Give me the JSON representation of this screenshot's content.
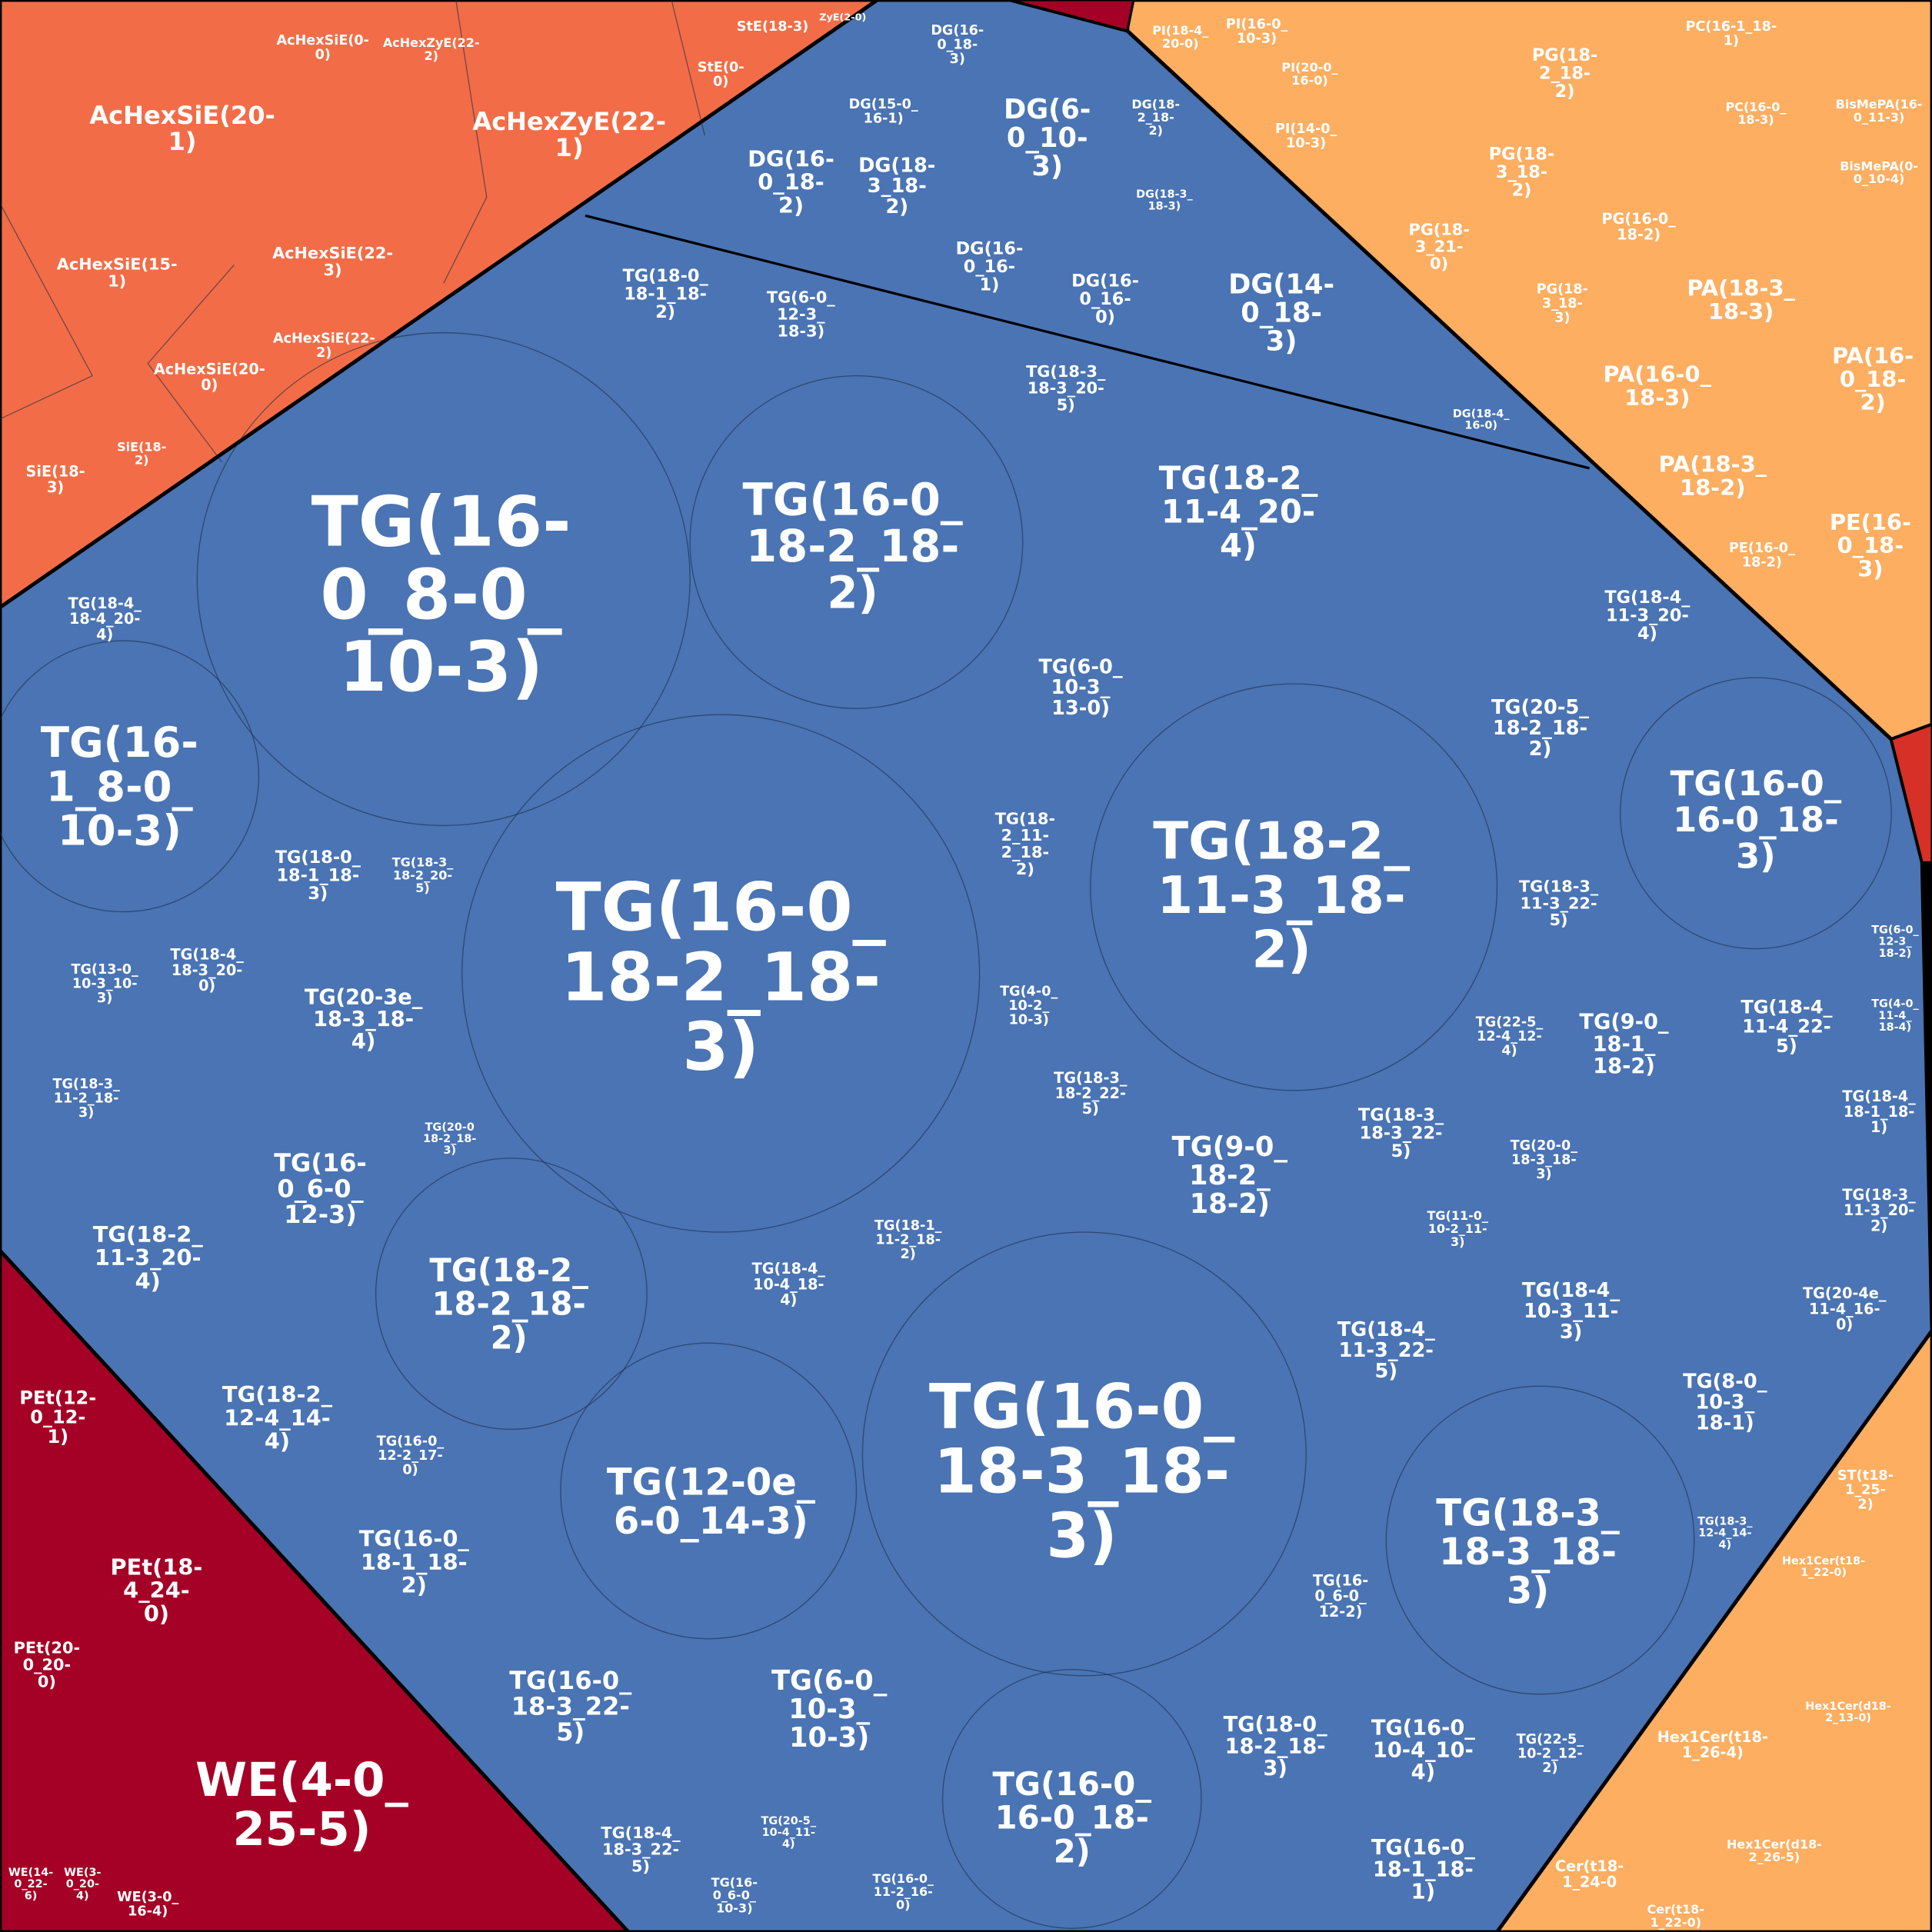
{
  "cells": [
    {
      "lines": [
        "AcHexSiE(20-",
        "1)"
      ]
    },
    {
      "lines": [
        "AcHexZyE(22-",
        "1)"
      ]
    },
    {
      "lines": [
        "AcHexSiE(15-",
        "1)"
      ]
    },
    {
      "lines": [
        "AcHexSiE(22-",
        "3)"
      ]
    },
    {
      "lines": [
        "AcHexSiE(20-",
        "0)"
      ]
    },
    {
      "lines": [
        "AcHexSiE(22-",
        "2)"
      ]
    },
    {
      "lines": [
        "AcHexSiE(0-",
        "0)"
      ]
    },
    {
      "lines": [
        "AcHexZyE(22-",
        "2)"
      ]
    },
    {
      "lines": [
        "StE(18-3)"
      ]
    },
    {
      "lines": [
        "StE(0-",
        "0)"
      ]
    },
    {
      "lines": [
        "SiE(18-",
        "3)"
      ]
    },
    {
      "lines": [
        "SiE(18-",
        "2)"
      ]
    },
    {
      "lines": [
        "ZyE(2-0)"
      ]
    },
    {
      "lines": [
        "DG(6-",
        "0_10-",
        "3)"
      ]
    },
    {
      "lines": [
        "DG(16-",
        "0_18-",
        "2)"
      ]
    },
    {
      "lines": [
        "DG(18-",
        "3_18-",
        "2)"
      ]
    },
    {
      "lines": [
        "DG(14-",
        "0_18-",
        "3)"
      ]
    },
    {
      "lines": [
        "DG(16-",
        "0_16-",
        "1)"
      ]
    },
    {
      "lines": [
        "DG(16-",
        "0_16-",
        "0)"
      ]
    },
    {
      "lines": [
        "DG(15-0_",
        "16-1)"
      ]
    },
    {
      "lines": [
        "DG(16-",
        "0_18-",
        "3)"
      ]
    },
    {
      "lines": [
        "DG(18-",
        "2_18-",
        "2)"
      ]
    },
    {
      "lines": [
        "DG(18-3_",
        "18-3)"
      ]
    },
    {
      "lines": [
        "DG(18-4_",
        "16-0)"
      ]
    },
    {
      "lines": [
        "TG(16-",
        "0_8-0_",
        "10-3)"
      ]
    },
    {
      "lines": [
        "TG(16-0_",
        "18-2_18-",
        "3)"
      ]
    },
    {
      "lines": [
        "TG(16-0_",
        "18-3_18-",
        "3)"
      ]
    },
    {
      "lines": [
        "TG(16-0_",
        "18-2_18-",
        "2)"
      ]
    },
    {
      "lines": [
        "TG(18-2_",
        "11-3_18-",
        "2)"
      ]
    },
    {
      "lines": [
        "TG(16-",
        "1_8-0_",
        "10-3)"
      ]
    },
    {
      "lines": [
        "TG(16-0_",
        "16-0_18-",
        "3)"
      ]
    },
    {
      "lines": [
        "TG(18-2_",
        "11-4_20-",
        "4)"
      ]
    },
    {
      "lines": [
        "TG(18-3_",
        "18-3_18-",
        "3)"
      ]
    },
    {
      "lines": [
        "TG(12-0e_",
        "6-0_14-3)"
      ]
    },
    {
      "lines": [
        "TG(18-2_",
        "18-2_18-",
        "2)"
      ]
    },
    {
      "lines": [
        "TG(16-0_",
        "16-0_18-",
        "2)"
      ]
    },
    {
      "lines": [
        "TG(6-0_",
        "10-3_",
        "10-3)"
      ]
    },
    {
      "lines": [
        "TG(16-0_",
        "18-3_22-",
        "5)"
      ]
    },
    {
      "lines": [
        "TG(9-0_",
        "18-2_",
        "18-2)"
      ]
    },
    {
      "lines": [
        "TG(20-3e_",
        "18-3_18-",
        "4)"
      ]
    },
    {
      "lines": [
        "TG(16-",
        "0_6-0_",
        "12-3)"
      ]
    },
    {
      "lines": [
        "TG(18-2_",
        "11-3_20-",
        "4)"
      ]
    },
    {
      "lines": [
        "TG(18-2_",
        "12-4_14-",
        "4)"
      ]
    },
    {
      "lines": [
        "TG(16-0_",
        "18-1_18-",
        "2)"
      ]
    },
    {
      "lines": [
        "TG(18-0_",
        "18-1_18-",
        "3)"
      ]
    },
    {
      "lines": [
        "TG(18-0_",
        "18-1_18-",
        "2)"
      ]
    },
    {
      "lines": [
        "TG(6-0_",
        "12-3_",
        "18-3)"
      ]
    },
    {
      "lines": [
        "TG(18-3_",
        "18-3_20-",
        "5)"
      ]
    },
    {
      "lines": [
        "TG(6-0_",
        "10-3_",
        "13-0)"
      ]
    },
    {
      "lines": [
        "TG(18-",
        "2_11-",
        "2_18-",
        "2)"
      ]
    },
    {
      "lines": [
        "TG(20-5_",
        "18-2_18-",
        "2)"
      ]
    },
    {
      "lines": [
        "TG(18-4_",
        "11-3_20-",
        "4)"
      ]
    },
    {
      "lines": [
        "TG(18-3_",
        "11-3_22-",
        "5)"
      ]
    },
    {
      "lines": [
        "TG(9-0_",
        "18-1_",
        "18-2)"
      ]
    },
    {
      "lines": [
        "TG(18-4_",
        "11-4_22-",
        "5)"
      ]
    },
    {
      "lines": [
        "TG(18-3_",
        "18-3_22-",
        "5)"
      ]
    },
    {
      "lines": [
        "TG(18-4_",
        "10-3_11-",
        "3)"
      ]
    },
    {
      "lines": [
        "TG(18-4_",
        "11-3_22-",
        "5)"
      ]
    },
    {
      "lines": [
        "TG(8-0_",
        "10-3_",
        "18-1)"
      ]
    },
    {
      "lines": [
        "TG(18-0_",
        "18-2_18-",
        "3)"
      ]
    },
    {
      "lines": [
        "TG(16-0_",
        "10-4_10-",
        "4)"
      ]
    },
    {
      "lines": [
        "TG(16-0_",
        "18-1_18-",
        "1)"
      ]
    },
    {
      "lines": [
        "TG(18-4_",
        "18-3_22-",
        "5)"
      ]
    },
    {
      "lines": [
        "TG(18-4_",
        "18-4_20-",
        "4)"
      ]
    },
    {
      "lines": [
        "TG(16-0_",
        "12-2_17-",
        "0)"
      ]
    },
    {
      "lines": [
        "TG(16-",
        "0_6-0_",
        "12-2)"
      ]
    },
    {
      "lines": [
        "TG(18-4_",
        "10-4_18-",
        "4)"
      ]
    },
    {
      "lines": [
        "TG(18-4_",
        "18-3_20-",
        "0)"
      ]
    },
    {
      "lines": [
        "TG(13-0_",
        "10-3_10-",
        "3)"
      ]
    },
    {
      "lines": [
        "TG(18-3_",
        "18-2_22-",
        "5)"
      ]
    },
    {
      "lines": [
        "TG(18-3_",
        "18-2_20-",
        "5)"
      ]
    },
    {
      "lines": [
        "TG(22-5_",
        "12-4_12-",
        "4)"
      ]
    },
    {
      "lines": [
        "TG(20-0_",
        "18-3_18-",
        "3)"
      ]
    },
    {
      "lines": [
        "TG(18-1_",
        "11-2_18-",
        "2)"
      ]
    },
    {
      "lines": [
        "TG(4-0_",
        "10-2_",
        "10-3)"
      ]
    },
    {
      "lines": [
        "TG(18-3_",
        "11-2_18-",
        "3)"
      ]
    },
    {
      "lines": [
        "TG(18-4_",
        "18-1_18-",
        "1)"
      ]
    },
    {
      "lines": [
        "TG(18-3_",
        "11-3_20-",
        "2)"
      ]
    },
    {
      "lines": [
        "TG(20-4e_",
        "11-4_16-",
        "0)"
      ]
    },
    {
      "lines": [
        "TG(11-0_",
        "10-2_11-",
        "3)"
      ]
    },
    {
      "lines": [
        "TG(22-5_",
        "10-2_12-",
        "2)"
      ]
    },
    {
      "lines": [
        "TG(18-3_",
        "12-4_14-",
        "4)"
      ]
    },
    {
      "lines": [
        "TG(16-0_",
        "11-2_16-",
        "0)"
      ]
    },
    {
      "lines": [
        "TG(16-",
        "0_6-0_",
        "10-3)"
      ]
    },
    {
      "lines": [
        "TG(20-5_",
        "10-4_11-",
        "4)"
      ]
    },
    {
      "lines": [
        "TG(20-0",
        "18-2_18-",
        "3)"
      ]
    },
    {
      "lines": [
        "TG(6-0_",
        "12-3_",
        "18-2)"
      ]
    },
    {
      "lines": [
        "TG(4-0_",
        "11-4_",
        "18-4)"
      ]
    },
    {
      "lines": [
        "PA(18-3_",
        "18-3)"
      ]
    },
    {
      "lines": [
        "PA(16-0_",
        "18-3)"
      ]
    },
    {
      "lines": [
        "PA(16-",
        "0_18-",
        "2)"
      ]
    },
    {
      "lines": [
        "PA(18-3_",
        "18-2)"
      ]
    },
    {
      "lines": [
        "PE(16-",
        "0_18-",
        "3)"
      ]
    },
    {
      "lines": [
        "PE(16-0_",
        "18-2)"
      ]
    },
    {
      "lines": [
        "PG(18-",
        "2_18-",
        "2)"
      ]
    },
    {
      "lines": [
        "PG(18-",
        "3_18-",
        "2)"
      ]
    },
    {
      "lines": [
        "PG(18-",
        "3_21-",
        "0)"
      ]
    },
    {
      "lines": [
        "PG(16-0_",
        "18-2)"
      ]
    },
    {
      "lines": [
        "PG(18-",
        "3_18-",
        "3)"
      ]
    },
    {
      "lines": [
        "PI(16-0_",
        "10-3)"
      ]
    },
    {
      "lines": [
        "PI(18-4_",
        "20-0)"
      ]
    },
    {
      "lines": [
        "PI(14-0_",
        "10-3)"
      ]
    },
    {
      "lines": [
        "PI(20-0_",
        "16-0)"
      ]
    },
    {
      "lines": [
        "PC(16-1_18-",
        "1)"
      ]
    },
    {
      "lines": [
        "PC(16-0_",
        "18-3)"
      ]
    },
    {
      "lines": [
        "BisMePA(16-",
        "0_11-3)"
      ]
    },
    {
      "lines": [
        "BisMePA(0-",
        "0_10-4)"
      ]
    },
    {
      "lines": [
        "ST(t18-",
        "1_25-",
        "2)"
      ]
    },
    {
      "lines": [
        "Hex1Cer(t18-",
        "1_26-4)"
      ]
    },
    {
      "lines": [
        "Hex1Cer(d18-",
        "2_26-5)"
      ]
    },
    {
      "lines": [
        "Cer(t18-",
        "1_24-0"
      ]
    },
    {
      "lines": [
        "Cer(t18-",
        "1_22-0)"
      ]
    },
    {
      "lines": [
        "Hex1Cer(t18-",
        "1_22-0)"
      ]
    },
    {
      "lines": [
        "Hex1Cer(d18-",
        "2_13-0)"
      ]
    },
    {
      "lines": [
        "WE(4-0_",
        "25-5)"
      ]
    },
    {
      "lines": [
        "PEt(18-",
        "4_24-",
        "0)"
      ]
    },
    {
      "lines": [
        "PEt(12-",
        "0_12-",
        "1)"
      ]
    },
    {
      "lines": [
        "PEt(20-",
        "0_20-",
        "0)"
      ]
    },
    {
      "lines": [
        "WE(3-0_",
        "16-4)"
      ]
    },
    {
      "lines": [
        "WE(14-",
        "0_22-",
        "6)"
      ]
    },
    {
      "lines": [
        "WE(3-",
        "0_20-",
        "4)"
      ]
    }
  ]
}
